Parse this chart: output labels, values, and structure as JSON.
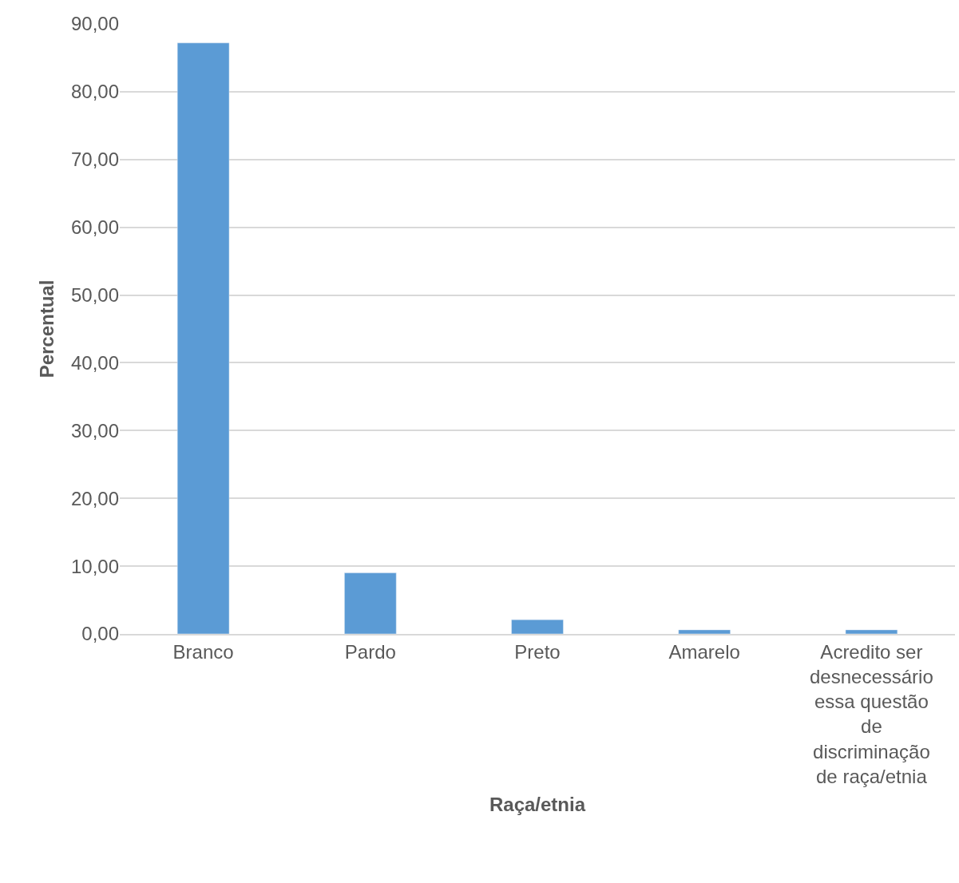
{
  "chart_data": {
    "type": "bar",
    "xlabel": "Raça/etnia",
    "ylabel": "Percentual",
    "categories": [
      "Branco",
      "Pardo",
      "Preto",
      "Amarelo",
      "Acredito ser desnecessário essa questão de discriminação de raça/etnia"
    ],
    "values": [
      87.2,
      9.0,
      2.1,
      0.6,
      0.6
    ],
    "color": "#5b9bd5",
    "ylim": [
      0,
      90
    ],
    "yticks": [
      {
        "value": 0,
        "label": "0,00"
      },
      {
        "value": 10,
        "label": "10,00"
      },
      {
        "value": 20,
        "label": "20,00"
      },
      {
        "value": 30,
        "label": "30,00"
      },
      {
        "value": 40,
        "label": "40,00"
      },
      {
        "value": 50,
        "label": "50,00"
      },
      {
        "value": 60,
        "label": "60,00"
      },
      {
        "value": 70,
        "label": "70,00"
      },
      {
        "value": 80,
        "label": "80,00"
      },
      {
        "value": 90,
        "label": "90,00"
      }
    ],
    "grid": "y",
    "legend": false
  }
}
